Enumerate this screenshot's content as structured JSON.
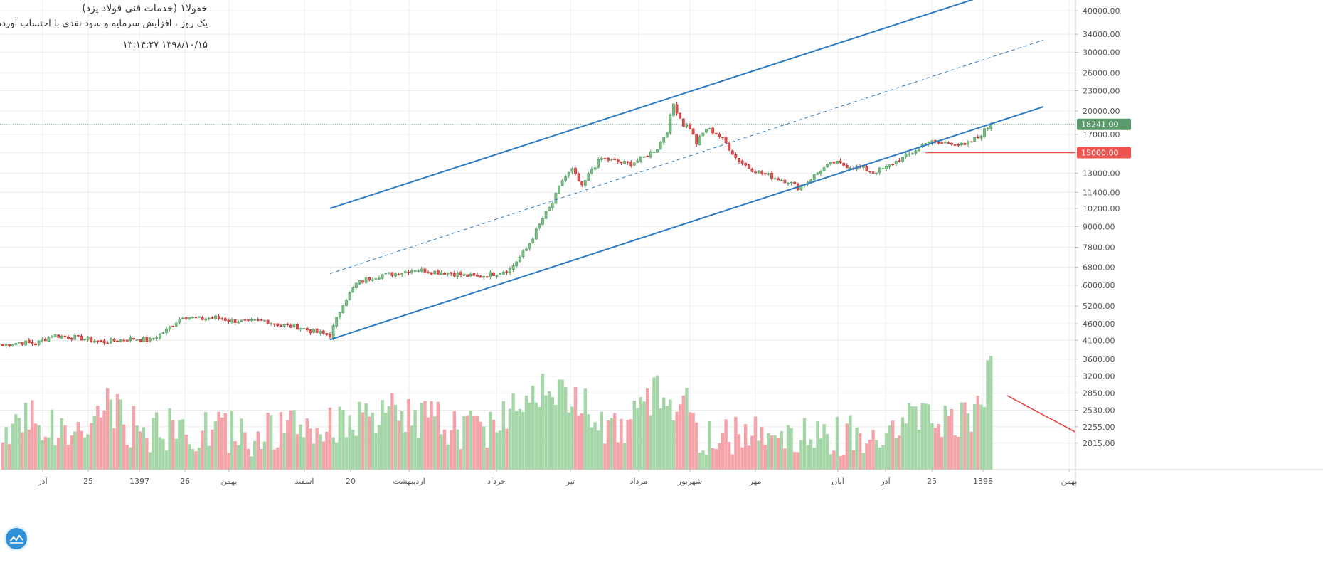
{
  "header": {
    "title": "خفولا۱ (خدمات فنی فولاد یزد)",
    "subtitle": "یک روز ، افزایش سرمایه و سود نقدی با احتساب آورده",
    "datetime": "۱۳۹۸/۱۰/۱۵   ۱۳:۱۴:۲۷"
  },
  "chart_data": {
    "type": "candlestick",
    "y_scale": "log",
    "ylim": [
      1780,
      41000
    ],
    "price_axis_ticks": [
      "40000.00",
      "34000.00",
      "30000.00",
      "26000.00",
      "23000.00",
      "20000.00",
      "17000.00",
      "15000.00",
      "13000.00",
      "11400.00",
      "10200.00",
      "9000.00",
      "7800.00",
      "6800.00",
      "6000.00",
      "5200.00",
      "4600.00",
      "4100.00",
      "3600.00",
      "3200.00",
      "2850.00",
      "2530.00",
      "2255.00",
      "2015.00"
    ],
    "time_axis_labels": [
      "آذر",
      "25",
      "1397",
      "26",
      "بهمن",
      "اسفند",
      "20",
      "اردیبهشت",
      "خرداد",
      "تیر",
      "مرداد",
      "شهریور",
      "مهر",
      "آبان",
      "آذر",
      "25",
      "1398",
      "بهمن"
    ],
    "last_price": "18241.00",
    "horizontal_level": "15000.00",
    "colors": {
      "up": "#4f9a5f",
      "up_fill": "#7cbf84",
      "down": "#c62828",
      "down_fill": "#d9534f",
      "vol_up": "#a5d6a7",
      "vol_down": "#f4a3a8",
      "channel": "#2b7bc3",
      "level": "#ef5350",
      "arrow": "#e53935",
      "last_price_bg": "#5b9a6b"
    },
    "ohlc_sample_note_free": true,
    "anchors": [
      [
        0,
        3950
      ],
      [
        5,
        4050
      ],
      [
        10,
        4000
      ],
      [
        15,
        4250
      ],
      [
        20,
        4200
      ],
      [
        25,
        4150
      ],
      [
        30,
        4050
      ],
      [
        35,
        4100
      ],
      [
        40,
        4150
      ],
      [
        45,
        4100
      ],
      [
        50,
        4400
      ],
      [
        55,
        4850
      ],
      [
        60,
        4750
      ],
      [
        65,
        4800
      ],
      [
        70,
        4700
      ],
      [
        75,
        4650
      ],
      [
        80,
        4700
      ],
      [
        85,
        4550
      ],
      [
        90,
        4500
      ],
      [
        95,
        4350
      ],
      [
        100,
        4250
      ],
      [
        104,
        5300
      ],
      [
        108,
        6050
      ],
      [
        112,
        6300
      ],
      [
        116,
        6450
      ],
      [
        120,
        6500
      ],
      [
        126,
        6700
      ],
      [
        130,
        6600
      ],
      [
        136,
        6550
      ],
      [
        140,
        6450
      ],
      [
        145,
        6350
      ],
      [
        150,
        6500
      ],
      [
        155,
        6700
      ],
      [
        160,
        7700
      ],
      [
        165,
        9500
      ],
      [
        168,
        10600
      ],
      [
        171,
        12400
      ],
      [
        174,
        13300
      ],
      [
        177,
        11800
      ],
      [
        180,
        13400
      ],
      [
        183,
        14400
      ],
      [
        186,
        14200
      ],
      [
        189,
        14000
      ],
      [
        192,
        13900
      ],
      [
        196,
        14500
      ],
      [
        200,
        15500
      ],
      [
        203,
        17500
      ],
      [
        205,
        21000
      ],
      [
        208,
        18200
      ],
      [
        210,
        17800
      ],
      [
        212,
        16000
      ],
      [
        215,
        17700
      ],
      [
        218,
        17200
      ],
      [
        221,
        16000
      ],
      [
        224,
        14500
      ],
      [
        228,
        13500
      ],
      [
        232,
        13000
      ],
      [
        236,
        12600
      ],
      [
        240,
        12300
      ],
      [
        243,
        11800
      ],
      [
        246,
        12300
      ],
      [
        250,
        13300
      ],
      [
        254,
        14000
      ],
      [
        258,
        13700
      ],
      [
        262,
        13500
      ],
      [
        266,
        13100
      ],
      [
        270,
        13500
      ],
      [
        274,
        14300
      ],
      [
        278,
        15000
      ],
      [
        282,
        16200
      ],
      [
        286,
        16000
      ],
      [
        290,
        16100
      ],
      [
        294,
        15700
      ],
      [
        298,
        16700
      ],
      [
        302,
        18241
      ]
    ],
    "volume_profile": [
      [
        0,
        2120
      ],
      [
        8,
        2600
      ],
      [
        12,
        2300
      ],
      [
        20,
        2150
      ],
      [
        28,
        2300
      ],
      [
        32,
        2700
      ],
      [
        36,
        2400
      ],
      [
        42,
        2200
      ],
      [
        50,
        2250
      ],
      [
        58,
        2150
      ],
      [
        66,
        2250
      ],
      [
        74,
        2150
      ],
      [
        82,
        2200
      ],
      [
        90,
        2250
      ],
      [
        98,
        2200
      ],
      [
        104,
        2450
      ],
      [
        112,
        2300
      ],
      [
        120,
        2550
      ],
      [
        130,
        2400
      ],
      [
        140,
        2250
      ],
      [
        150,
        2300
      ],
      [
        160,
        2900
      ],
      [
        166,
        3100
      ],
      [
        172,
        2700
      ],
      [
        178,
        2800
      ],
      [
        184,
        2350
      ],
      [
        190,
        2200
      ],
      [
        196,
        2600
      ],
      [
        200,
        2900
      ],
      [
        204,
        2600
      ],
      [
        208,
        3000
      ],
      [
        212,
        2100
      ],
      [
        220,
        2050
      ],
      [
        226,
        2300
      ],
      [
        232,
        2250
      ],
      [
        240,
        2150
      ],
      [
        248,
        2100
      ],
      [
        256,
        2150
      ],
      [
        264,
        2200
      ],
      [
        272,
        2300
      ],
      [
        280,
        2450
      ],
      [
        288,
        2400
      ],
      [
        296,
        2500
      ],
      [
        302,
        3300
      ]
    ]
  }
}
